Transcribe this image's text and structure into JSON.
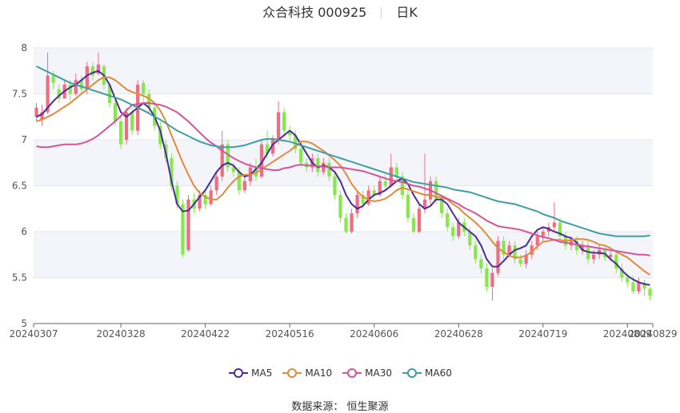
{
  "header": {
    "title": "众合科技 000925",
    "period": "日K"
  },
  "source": "数据来源：  恒生聚源",
  "chart_data": {
    "type": "candlestick",
    "ylim": [
      5,
      8
    ],
    "yticks": [
      "5",
      "5.5",
      "6",
      "6.5",
      "7",
      "7.5",
      "8"
    ],
    "xticks": [
      "20240307",
      "20240328",
      "20240422",
      "20240516",
      "20240606",
      "20240628",
      "20240719",
      "20240809",
      "20240829"
    ],
    "xtick_index": [
      0,
      15,
      30,
      45,
      60,
      75,
      90,
      105,
      119
    ],
    "grid": true,
    "up_color": "#ef6d80",
    "down_color": "#86e84a",
    "legend_position": "bottom",
    "series": [
      {
        "name": "MA5",
        "color": "#4b2d96",
        "values": [
          7.25,
          7.28,
          7.35,
          7.42,
          7.48,
          7.53,
          7.57,
          7.6,
          7.65,
          7.7,
          7.73,
          7.75,
          7.7,
          7.6,
          7.45,
          7.3,
          7.25,
          7.3,
          7.35,
          7.4,
          7.35,
          7.25,
          7.1,
          6.85,
          6.55,
          6.3,
          6.22,
          6.23,
          6.3,
          6.38,
          6.45,
          6.55,
          6.65,
          6.72,
          6.75,
          6.72,
          6.65,
          6.6,
          6.62,
          6.68,
          6.75,
          6.85,
          6.95,
          7.0,
          7.05,
          7.1,
          7.05,
          6.95,
          6.85,
          6.75,
          6.7,
          6.72,
          6.7,
          6.65,
          6.55,
          6.4,
          6.3,
          6.25,
          6.28,
          6.35,
          6.4,
          6.42,
          6.45,
          6.5,
          6.55,
          6.58,
          6.52,
          6.4,
          6.3,
          6.25,
          6.28,
          6.35,
          6.35,
          6.3,
          6.2,
          6.1,
          6.05,
          6.0,
          5.95,
          5.85,
          5.7,
          5.62,
          5.62,
          5.68,
          5.75,
          5.8,
          5.82,
          5.85,
          5.95,
          6.02,
          6.05,
          6.03,
          6.0,
          5.98,
          5.95,
          5.93,
          5.88,
          5.8,
          5.78,
          5.77,
          5.77,
          5.76,
          5.7,
          5.65,
          5.58,
          5.52,
          5.48,
          5.45,
          5.43,
          5.42
        ]
      },
      {
        "name": "MA10",
        "color": "#e18a3b",
        "values": [
          7.2,
          7.22,
          7.25,
          7.28,
          7.32,
          7.36,
          7.4,
          7.45,
          7.5,
          7.55,
          7.6,
          7.65,
          7.68,
          7.68,
          7.65,
          7.6,
          7.55,
          7.52,
          7.5,
          7.48,
          7.45,
          7.4,
          7.32,
          7.2,
          7.05,
          6.9,
          6.75,
          6.62,
          6.5,
          6.42,
          6.38,
          6.35,
          6.35,
          6.4,
          6.48,
          6.55,
          6.6,
          6.62,
          6.62,
          6.64,
          6.68,
          6.72,
          6.76,
          6.8,
          6.84,
          6.88,
          6.93,
          6.98,
          6.98,
          6.96,
          6.92,
          6.88,
          6.83,
          6.78,
          6.72,
          6.63,
          6.52,
          6.44,
          6.38,
          6.35,
          6.33,
          6.34,
          6.36,
          6.4,
          6.45,
          6.48,
          6.46,
          6.44,
          6.42,
          6.4,
          6.4,
          6.38,
          6.37,
          6.35,
          6.3,
          6.26,
          6.2,
          6.15,
          6.1,
          6.04,
          5.97,
          5.89,
          5.82,
          5.78,
          5.74,
          5.72,
          5.72,
          5.74,
          5.78,
          5.84,
          5.89,
          5.9,
          5.91,
          5.91,
          5.9,
          5.91,
          5.92,
          5.92,
          5.91,
          5.89,
          5.86,
          5.85,
          5.82,
          5.78,
          5.75,
          5.72,
          5.67,
          5.62,
          5.57,
          5.53
        ]
      },
      {
        "name": "MA30",
        "color": "#d4549b",
        "values": [
          6.93,
          6.92,
          6.92,
          6.93,
          6.94,
          6.95,
          6.95,
          6.95,
          6.96,
          6.98,
          7.01,
          7.05,
          7.1,
          7.15,
          7.2,
          7.26,
          7.32,
          7.38,
          7.39,
          7.4,
          7.4,
          7.39,
          7.38,
          7.36,
          7.33,
          7.3,
          7.25,
          7.2,
          7.14,
          7.08,
          7.02,
          6.97,
          6.93,
          6.88,
          6.84,
          6.8,
          6.77,
          6.74,
          6.72,
          6.7,
          6.69,
          6.68,
          6.67,
          6.67,
          6.69,
          6.7,
          6.72,
          6.73,
          6.72,
          6.72,
          6.71,
          6.71,
          6.7,
          6.7,
          6.7,
          6.69,
          6.68,
          6.67,
          6.66,
          6.64,
          6.62,
          6.6,
          6.58,
          6.56,
          6.55,
          6.54,
          6.52,
          6.5,
          6.49,
          6.47,
          6.45,
          6.42,
          6.39,
          6.36,
          6.33,
          6.3,
          6.26,
          6.23,
          6.2,
          6.16,
          6.12,
          6.09,
          6.06,
          6.05,
          6.04,
          6.03,
          6.02,
          6.0,
          5.98,
          5.96,
          5.94,
          5.93,
          5.91,
          5.89,
          5.88,
          5.87,
          5.86,
          5.85,
          5.84,
          5.83,
          5.82,
          5.81,
          5.8,
          5.79,
          5.78,
          5.77,
          5.76,
          5.75,
          5.75,
          5.74
        ]
      },
      {
        "name": "MA60",
        "color": "#3f9ea4",
        "values": [
          7.8,
          7.77,
          7.74,
          7.71,
          7.68,
          7.65,
          7.62,
          7.6,
          7.58,
          7.56,
          7.54,
          7.52,
          7.5,
          7.48,
          7.46,
          7.44,
          7.41,
          7.38,
          7.35,
          7.32,
          7.29,
          7.25,
          7.22,
          7.18,
          7.14,
          7.1,
          7.07,
          7.04,
          7.01,
          6.98,
          6.96,
          6.94,
          6.93,
          6.92,
          6.92,
          6.92,
          6.93,
          6.94,
          6.96,
          6.98,
          7.0,
          7.01,
          7.01,
          7.0,
          6.99,
          6.98,
          6.96,
          6.94,
          6.92,
          6.9,
          6.88,
          6.86,
          6.84,
          6.82,
          6.8,
          6.78,
          6.76,
          6.74,
          6.72,
          6.7,
          6.68,
          6.66,
          6.64,
          6.62,
          6.6,
          6.58,
          6.56,
          6.54,
          6.53,
          6.52,
          6.51,
          6.5,
          6.49,
          6.48,
          6.46,
          6.45,
          6.44,
          6.43,
          6.41,
          6.39,
          6.37,
          6.35,
          6.33,
          6.32,
          6.31,
          6.3,
          6.28,
          6.26,
          6.24,
          6.22,
          6.19,
          6.17,
          6.15,
          6.12,
          6.1,
          6.08,
          6.06,
          6.04,
          6.02,
          6.0,
          5.98,
          5.97,
          5.96,
          5.95,
          5.95,
          5.95,
          5.95,
          5.95,
          5.95,
          5.96
        ]
      }
    ],
    "candles": [
      [
        7.25,
        7.35,
        7.2,
        7.4
      ],
      [
        7.22,
        7.3,
        7.15,
        7.38
      ],
      [
        7.3,
        7.7,
        7.28,
        7.95
      ],
      [
        7.7,
        7.62,
        7.55,
        7.75
      ],
      [
        7.55,
        7.45,
        7.4,
        7.6
      ],
      [
        7.45,
        7.6,
        7.45,
        7.65
      ],
      [
        7.6,
        7.5,
        7.42,
        7.65
      ],
      [
        7.5,
        7.65,
        7.48,
        7.72
      ],
      [
        7.65,
        7.55,
        7.5,
        7.7
      ],
      [
        7.55,
        7.8,
        7.5,
        7.85
      ],
      [
        7.8,
        7.7,
        7.65,
        7.85
      ],
      [
        7.72,
        7.82,
        7.7,
        7.95
      ],
      [
        7.8,
        7.6,
        7.55,
        7.82
      ],
      [
        7.6,
        7.4,
        7.35,
        7.62
      ],
      [
        7.4,
        7.2,
        7.15,
        7.45
      ],
      [
        7.2,
        6.95,
        6.9,
        7.25
      ],
      [
        7.0,
        7.3,
        6.95,
        7.35
      ],
      [
        7.3,
        7.1,
        7.05,
        7.35
      ],
      [
        7.1,
        7.6,
        7.05,
        7.65
      ],
      [
        7.62,
        7.5,
        7.4,
        7.65
      ],
      [
        7.5,
        7.35,
        7.3,
        7.55
      ],
      [
        7.35,
        7.15,
        7.1,
        7.4
      ],
      [
        7.15,
        6.95,
        6.9,
        7.2
      ],
      [
        6.95,
        6.8,
        6.75,
        7.0
      ],
      [
        6.8,
        6.5,
        6.45,
        6.85
      ],
      [
        6.5,
        6.3,
        6.25,
        6.55
      ],
      [
        6.3,
        5.75,
        5.72,
        6.35
      ],
      [
        5.8,
        6.35,
        5.78,
        6.4
      ],
      [
        6.35,
        6.25,
        6.2,
        6.42
      ],
      [
        6.25,
        6.4,
        6.22,
        6.45
      ],
      [
        6.4,
        6.3,
        6.25,
        6.45
      ],
      [
        6.3,
        6.45,
        6.28,
        6.5
      ],
      [
        6.45,
        6.6,
        6.4,
        6.65
      ],
      [
        6.6,
        6.95,
        6.55,
        7.1
      ],
      [
        6.95,
        6.7,
        6.65,
        7.0
      ],
      [
        6.7,
        6.65,
        6.6,
        6.75
      ],
      [
        6.65,
        6.45,
        6.4,
        6.7
      ],
      [
        6.45,
        6.55,
        6.42,
        6.6
      ],
      [
        6.55,
        6.7,
        6.5,
        6.75
      ],
      [
        6.7,
        6.6,
        6.55,
        6.8
      ],
      [
        6.6,
        6.95,
        6.58,
        7.0
      ],
      [
        6.95,
        6.85,
        6.8,
        7.1
      ],
      [
        6.85,
        7.0,
        6.82,
        7.05
      ],
      [
        7.0,
        7.3,
        6.95,
        7.42
      ],
      [
        7.3,
        7.1,
        7.05,
        7.35
      ],
      [
        7.1,
        7.05,
        7.0,
        7.15
      ],
      [
        7.05,
        6.9,
        6.85,
        7.1
      ],
      [
        6.9,
        6.75,
        6.7,
        6.95
      ],
      [
        6.75,
        6.7,
        6.65,
        6.8
      ],
      [
        6.7,
        6.8,
        6.65,
        6.85
      ],
      [
        6.8,
        6.65,
        6.6,
        6.85
      ],
      [
        6.65,
        6.75,
        6.62,
        6.8
      ],
      [
        6.75,
        6.6,
        6.55,
        6.8
      ],
      [
        6.6,
        6.4,
        6.35,
        6.65
      ],
      [
        6.4,
        6.15,
        6.1,
        6.45
      ],
      [
        6.15,
        6.0,
        5.98,
        6.2
      ],
      [
        6.0,
        6.2,
        5.98,
        6.25
      ],
      [
        6.2,
        6.4,
        6.15,
        6.45
      ],
      [
        6.4,
        6.3,
        6.25,
        6.45
      ],
      [
        6.3,
        6.45,
        6.28,
        6.5
      ],
      [
        6.45,
        6.4,
        6.35,
        6.5
      ],
      [
        6.4,
        6.55,
        6.38,
        6.6
      ],
      [
        6.55,
        6.5,
        6.45,
        6.62
      ],
      [
        6.5,
        6.7,
        6.48,
        6.85
      ],
      [
        6.7,
        6.6,
        6.55,
        6.75
      ],
      [
        6.6,
        6.4,
        6.35,
        6.65
      ],
      [
        6.4,
        6.15,
        6.1,
        6.45
      ],
      [
        6.15,
        6.0,
        5.98,
        6.2
      ],
      [
        6.0,
        6.25,
        5.98,
        6.3
      ],
      [
        6.25,
        6.35,
        6.2,
        6.85
      ],
      [
        6.35,
        6.55,
        6.3,
        6.6
      ],
      [
        6.55,
        6.35,
        6.3,
        6.6
      ],
      [
        6.35,
        6.2,
        6.15,
        6.4
      ],
      [
        6.2,
        6.05,
        6.0,
        6.25
      ],
      [
        6.05,
        5.95,
        5.9,
        6.1
      ],
      [
        5.95,
        6.1,
        5.92,
        6.15
      ],
      [
        6.1,
        6.0,
        5.95,
        6.15
      ],
      [
        6.0,
        5.85,
        5.8,
        6.05
      ],
      [
        5.85,
        5.7,
        5.65,
        5.9
      ],
      [
        5.7,
        5.6,
        5.55,
        5.75
      ],
      [
        5.6,
        5.4,
        5.35,
        5.65
      ],
      [
        5.4,
        5.55,
        5.25,
        5.6
      ],
      [
        5.55,
        5.9,
        5.52,
        5.95
      ],
      [
        5.9,
        5.75,
        5.7,
        5.95
      ],
      [
        5.75,
        5.85,
        5.72,
        5.9
      ],
      [
        5.85,
        5.7,
        5.65,
        5.9
      ],
      [
        5.7,
        5.65,
        5.62,
        5.75
      ],
      [
        5.65,
        5.75,
        5.6,
        5.8
      ],
      [
        5.75,
        5.85,
        5.7,
        5.9
      ],
      [
        5.85,
        5.95,
        5.8,
        6.0
      ],
      [
        5.95,
        6.0,
        5.9,
        6.05
      ],
      [
        6.0,
        6.05,
        5.95,
        6.1
      ],
      [
        6.05,
        6.1,
        6.0,
        6.32
      ],
      [
        6.1,
        5.95,
        5.9,
        6.15
      ],
      [
        5.95,
        5.85,
        5.8,
        6.0
      ],
      [
        5.85,
        5.9,
        5.8,
        5.95
      ],
      [
        5.9,
        5.8,
        5.75,
        5.95
      ],
      [
        5.8,
        5.85,
        5.75,
        5.9
      ],
      [
        5.85,
        5.7,
        5.65,
        5.9
      ],
      [
        5.7,
        5.75,
        5.65,
        5.8
      ],
      [
        5.75,
        5.8,
        5.7,
        5.85
      ],
      [
        5.8,
        5.72,
        5.68,
        5.85
      ],
      [
        5.72,
        5.75,
        5.68,
        5.8
      ],
      [
        5.75,
        5.6,
        5.55,
        5.78
      ],
      [
        5.6,
        5.5,
        5.45,
        5.65
      ],
      [
        5.5,
        5.45,
        5.4,
        5.55
      ],
      [
        5.45,
        5.35,
        5.32,
        5.52
      ],
      [
        5.35,
        5.45,
        5.32,
        5.5
      ],
      [
        5.45,
        5.38,
        5.3,
        5.48
      ],
      [
        5.38,
        5.3,
        5.25,
        5.4
      ]
    ]
  }
}
